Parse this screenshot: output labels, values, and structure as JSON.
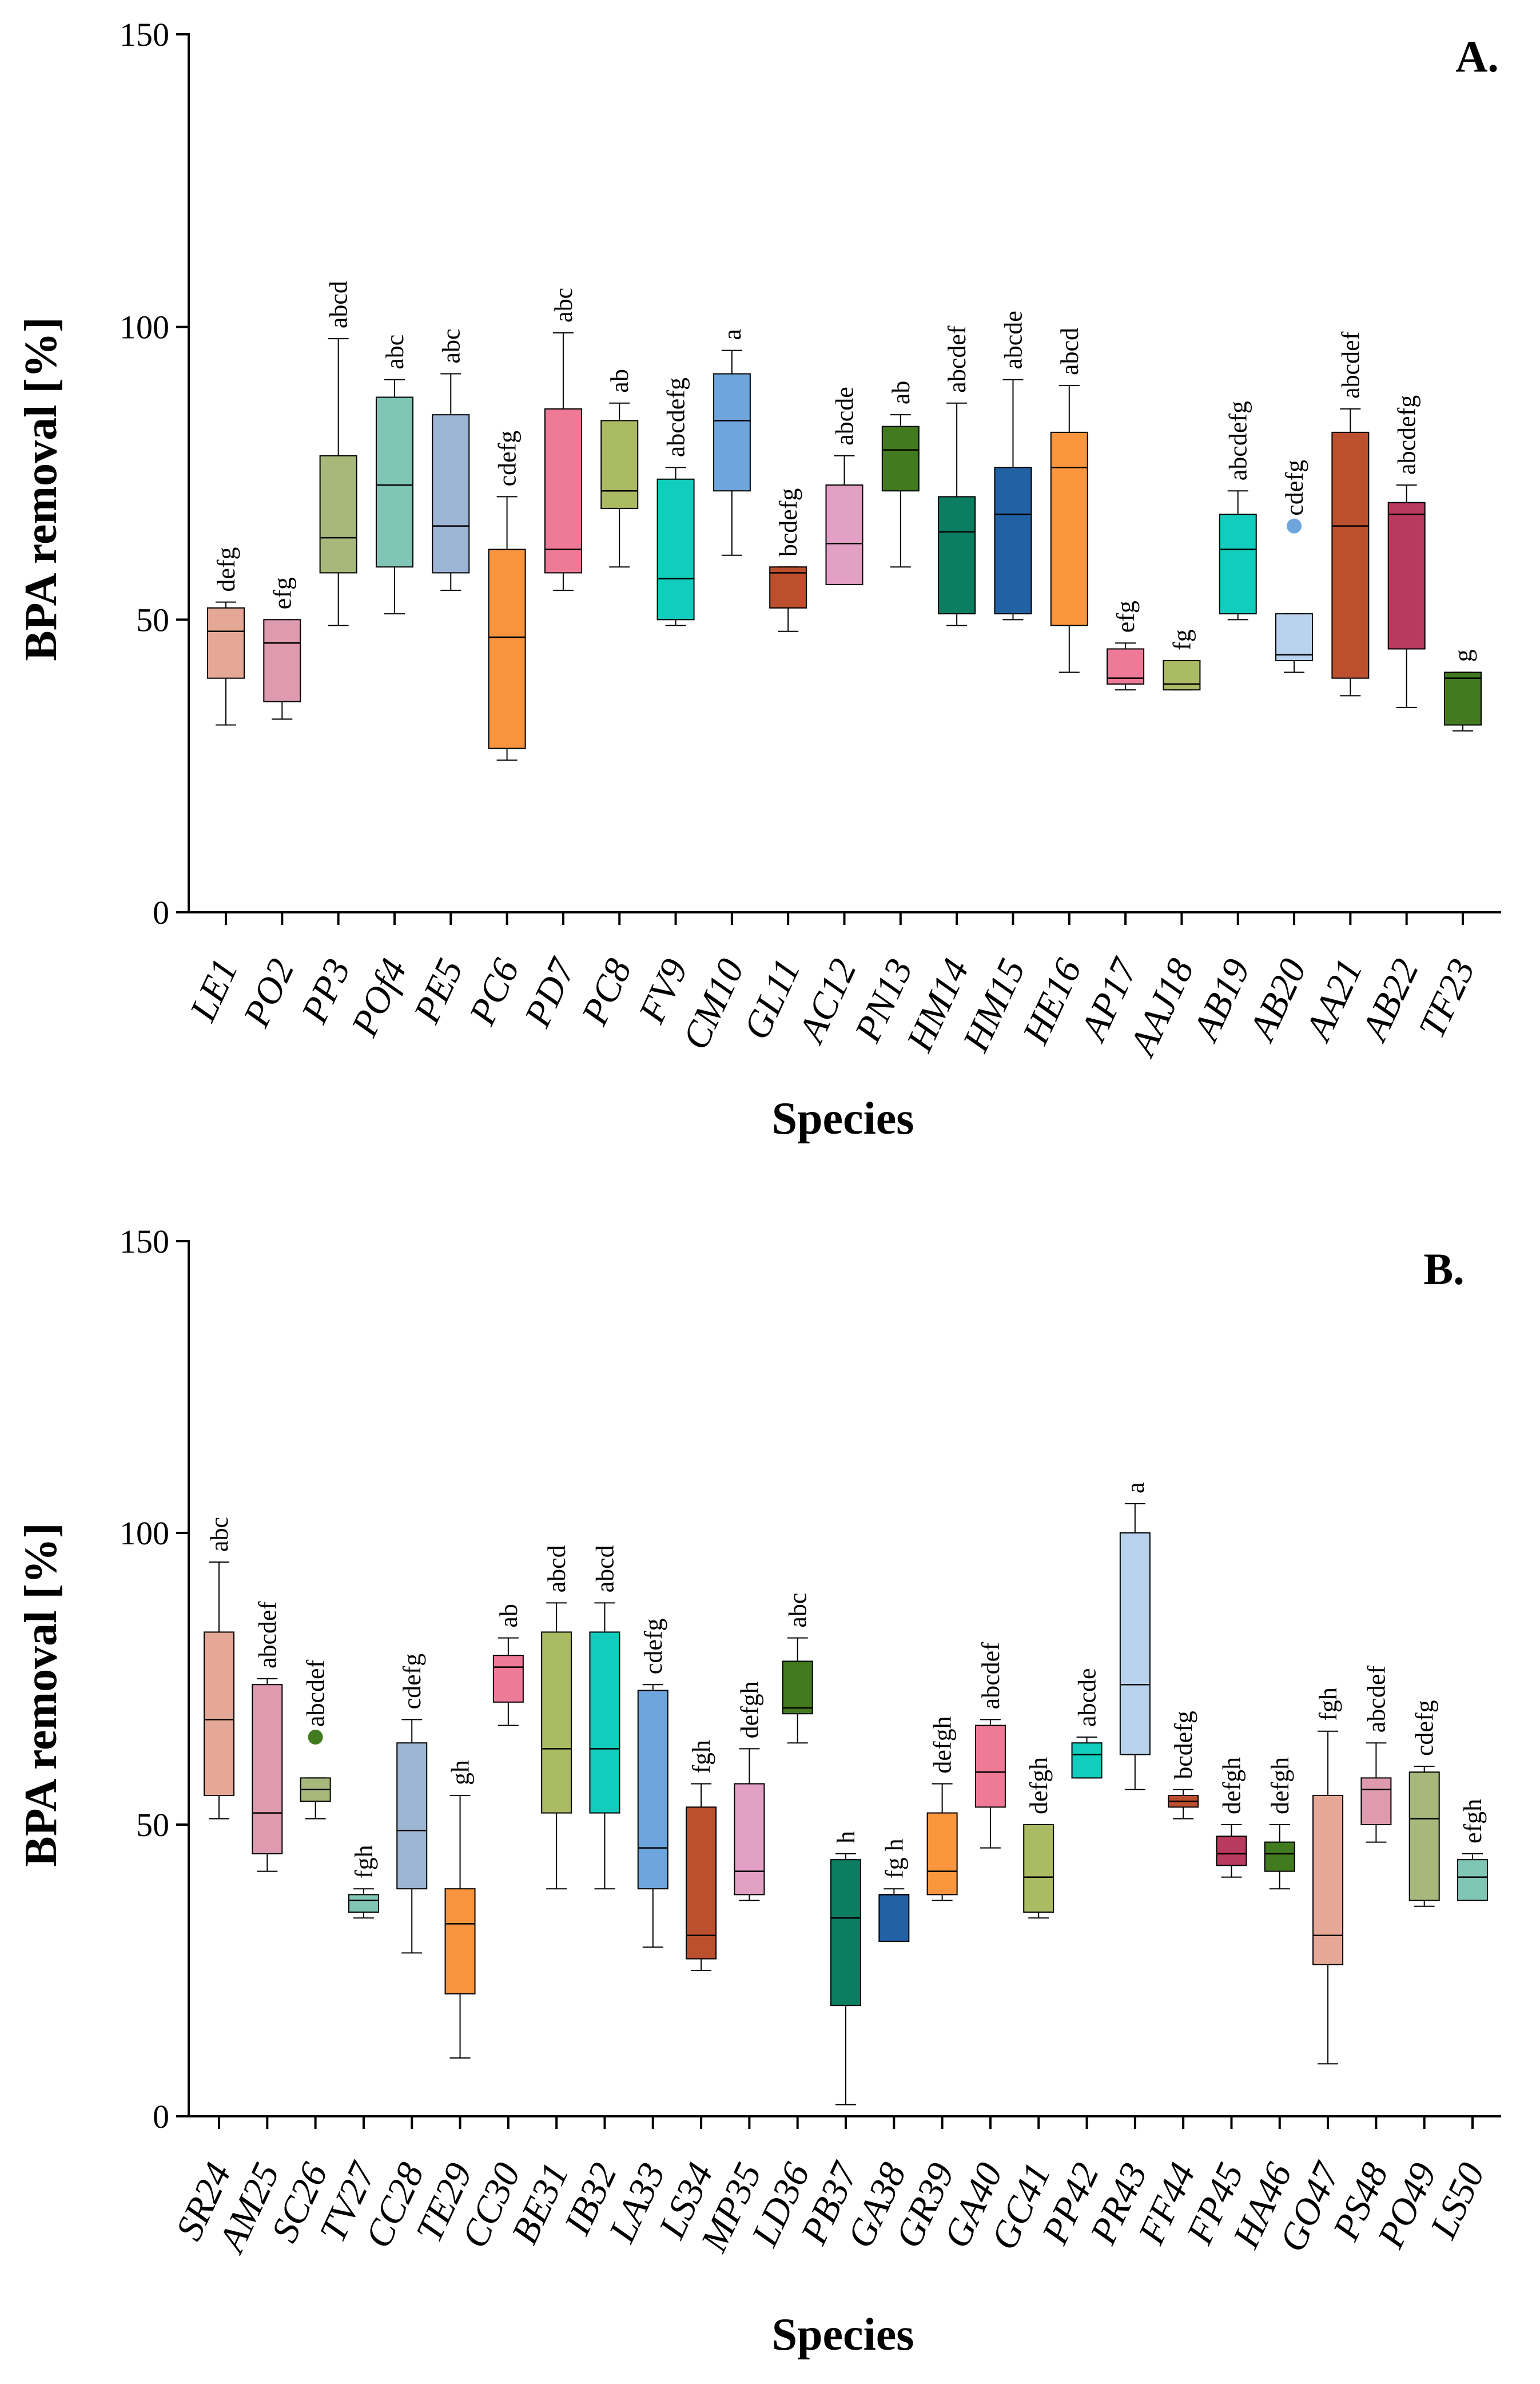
{
  "chart_data": [
    {
      "type": "box",
      "panel": "A.",
      "xlabel": "Species",
      "ylabel": "BPA removal [%]",
      "ylim": [
        0,
        150
      ],
      "yticks": [
        0,
        50,
        100,
        150
      ],
      "categories": [
        "LE1",
        "PO2",
        "PP3",
        "POf4",
        "PE5",
        "PC6",
        "PD7",
        "PC8",
        "FV9",
        "CM10",
        "GL11",
        "AC12",
        "PN13",
        "HM14",
        "HM15",
        "HE16",
        "AP17",
        "AAJ18",
        "AB19",
        "AB20",
        "AA21",
        "AB22",
        "TF23"
      ],
      "boxes": [
        {
          "min": 32,
          "q1": 40,
          "median": 48,
          "q3": 52,
          "max": 53,
          "color": "#E6A896",
          "letters": "defg"
        },
        {
          "min": 33,
          "q1": 36,
          "median": 46,
          "q3": 50,
          "max": 50,
          "color": "#DE9AAE",
          "letters": "efg"
        },
        {
          "min": 49,
          "q1": 58,
          "median": 64,
          "q3": 78,
          "max": 98,
          "color": "#A6B97B",
          "letters": "abcd"
        },
        {
          "min": 51,
          "q1": 59,
          "median": 73,
          "q3": 88,
          "max": 91,
          "color": "#80C6B6",
          "letters": "abc"
        },
        {
          "min": 55,
          "q1": 58,
          "median": 66,
          "q3": 85,
          "max": 92,
          "color": "#9DB5D5",
          "letters": "abc"
        },
        {
          "min": 26,
          "q1": 28,
          "median": 47,
          "q3": 62,
          "max": 71,
          "color": "#F7943D",
          "letters": "cdefg"
        },
        {
          "min": 55,
          "q1": 58,
          "median": 62,
          "q3": 86,
          "max": 99,
          "color": "#EF7A97",
          "letters": "abc"
        },
        {
          "min": 59,
          "q1": 69,
          "median": 72,
          "q3": 84,
          "max": 87,
          "color": "#ABBB63",
          "letters": "ab"
        },
        {
          "min": 49,
          "q1": 50,
          "median": 57,
          "q3": 74,
          "max": 76,
          "color": "#12CDBD",
          "letters": "abcdefg"
        },
        {
          "min": 61,
          "q1": 72,
          "median": 84,
          "q3": 92,
          "max": 96,
          "color": "#6EA5DC",
          "letters": "a"
        },
        {
          "min": 48,
          "q1": 52,
          "median": 58,
          "q3": 59,
          "max": 59,
          "color": "#BC4F2E",
          "letters": "bcdefg"
        },
        {
          "min": 56,
          "q1": 56,
          "median": 63,
          "q3": 73,
          "max": 78,
          "color": "#E2A0C4",
          "letters": "abcde"
        },
        {
          "min": 59,
          "q1": 72,
          "median": 79,
          "q3": 83,
          "max": 85,
          "color": "#427A1F",
          "letters": "ab"
        },
        {
          "min": 49,
          "q1": 51,
          "median": 65,
          "q3": 71,
          "max": 87,
          "color": "#0B7D60",
          "letters": "abcdef"
        },
        {
          "min": 50,
          "q1": 51,
          "median": 68,
          "q3": 76,
          "max": 91,
          "color": "#2262A4",
          "letters": "abcde"
        },
        {
          "min": 41,
          "q1": 49,
          "median": 76,
          "q3": 82,
          "max": 90,
          "color": "#F9963E",
          "letters": "abcd"
        },
        {
          "min": 38,
          "q1": 39,
          "median": 40,
          "q3": 45,
          "max": 46,
          "color": "#EF7A97",
          "letters": "efg"
        },
        {
          "min": 38,
          "q1": 38,
          "median": 39,
          "q3": 43,
          "max": 43,
          "color": "#ABBB63",
          "letters": "fg"
        },
        {
          "min": 50,
          "q1": 51,
          "median": 62,
          "q3": 68,
          "max": 72,
          "color": "#12CDBD",
          "letters": "abcdefg"
        },
        {
          "min": 41,
          "q1": 43,
          "median": 44,
          "q3": 51,
          "max": 51,
          "color": "#B9D3EE",
          "letters": "cdefg",
          "outliers": [
            66
          ]
        },
        {
          "min": 37,
          "q1": 40,
          "median": 66,
          "q3": 82,
          "max": 86,
          "color": "#BC4F2E",
          "letters": "abcdef"
        },
        {
          "min": 35,
          "q1": 45,
          "median": 68,
          "q3": 70,
          "max": 73,
          "color": "#B83A5E",
          "letters": "abcdefg"
        },
        {
          "min": 31,
          "q1": 32,
          "median": 40,
          "q3": 41,
          "max": 41,
          "color": "#427A1F",
          "letters": "g"
        }
      ]
    },
    {
      "type": "box",
      "panel": "B.",
      "xlabel": "Species",
      "ylabel": "BPA removal [%]",
      "ylim": [
        0,
        150
      ],
      "yticks": [
        0,
        50,
        100,
        150
      ],
      "categories": [
        "SR24",
        "AM25",
        "SC26",
        "TV27",
        "CC28",
        "TE29",
        "CC30",
        "BE31",
        "IB32",
        "LA33",
        "LS34",
        "MP35",
        "LD36",
        "PB37",
        "GA38",
        "GR39",
        "GA40",
        "GC41",
        "PP42",
        "PR43",
        "FF44",
        "FP45",
        "HA46",
        "GO47",
        "PS48",
        "PO49",
        "LS50"
      ],
      "boxes": [
        {
          "min": 51,
          "q1": 55,
          "median": 68,
          "q3": 83,
          "max": 95,
          "color": "#E6A896",
          "letters": "abc"
        },
        {
          "min": 42,
          "q1": 45,
          "median": 52,
          "q3": 74,
          "max": 75,
          "color": "#DE9AAE",
          "letters": "abcdef"
        },
        {
          "min": 51,
          "q1": 54,
          "median": 56,
          "q3": 58,
          "max": 58,
          "color": "#A6B97B",
          "letters": "abcdef",
          "outliers": [
            65
          ]
        },
        {
          "min": 34,
          "q1": 35,
          "median": 37,
          "q3": 38,
          "max": 39,
          "color": "#80C6B6",
          "letters": "fgh"
        },
        {
          "min": 28,
          "q1": 39,
          "median": 49,
          "q3": 64,
          "max": 68,
          "color": "#9DB5D5",
          "letters": "cdefg"
        },
        {
          "min": 10,
          "q1": 21,
          "median": 33,
          "q3": 39,
          "max": 55,
          "color": "#F7943D",
          "letters": "gh"
        },
        {
          "min": 67,
          "q1": 71,
          "median": 77,
          "q3": 79,
          "max": 82,
          "color": "#EF7A97",
          "letters": "ab"
        },
        {
          "min": 39,
          "q1": 52,
          "median": 63,
          "q3": 83,
          "max": 88,
          "color": "#ABBB63",
          "letters": "abcd"
        },
        {
          "min": 39,
          "q1": 52,
          "median": 63,
          "q3": 83,
          "max": 88,
          "color": "#12CDBD",
          "letters": "abcd"
        },
        {
          "min": 29,
          "q1": 39,
          "median": 46,
          "q3": 73,
          "max": 74,
          "color": "#6EA5DC",
          "letters": "cdefg"
        },
        {
          "min": 25,
          "q1": 27,
          "median": 31,
          "q3": 53,
          "max": 57,
          "color": "#BC4F2E",
          "letters": "fgh"
        },
        {
          "min": 37,
          "q1": 38,
          "median": 42,
          "q3": 57,
          "max": 63,
          "color": "#E2A0C4",
          "letters": "defgh"
        },
        {
          "min": 64,
          "q1": 69,
          "median": 70,
          "q3": 78,
          "max": 82,
          "color": "#427A1F",
          "letters": "abc"
        },
        {
          "min": 2,
          "q1": 19,
          "median": 34,
          "q3": 44,
          "max": 45,
          "color": "#0B7D60",
          "letters": "h"
        },
        {
          "min": 30,
          "q1": 30,
          "median": 38,
          "q3": 38,
          "max": 39,
          "color": "#2262A4",
          "letters": "fg h"
        },
        {
          "min": 37,
          "q1": 38,
          "median": 42,
          "q3": 52,
          "max": 57,
          "color": "#F9963E",
          "letters": "defgh"
        },
        {
          "min": 46,
          "q1": 53,
          "median": 59,
          "q3": 67,
          "max": 68,
          "color": "#EF7A97",
          "letters": "abcdef"
        },
        {
          "min": 34,
          "q1": 35,
          "median": 41,
          "q3": 50,
          "max": 50,
          "color": "#ABBB63",
          "letters": "defgh"
        },
        {
          "min": 58,
          "q1": 58,
          "median": 62,
          "q3": 64,
          "max": 65,
          "color": "#12CDBD",
          "letters": "abcde"
        },
        {
          "min": 56,
          "q1": 62,
          "median": 74,
          "q3": 100,
          "max": 105,
          "color": "#B9D3EE",
          "letters": "a"
        },
        {
          "min": 51,
          "q1": 53,
          "median": 54,
          "q3": 55,
          "max": 56,
          "color": "#BC4F2E",
          "letters": "bcdefg"
        },
        {
          "min": 41,
          "q1": 43,
          "median": 45,
          "q3": 48,
          "max": 50,
          "color": "#B83A5E",
          "letters": "defgh"
        },
        {
          "min": 39,
          "q1": 42,
          "median": 45,
          "q3": 47,
          "max": 50,
          "color": "#427A1F",
          "letters": "defgh"
        },
        {
          "min": 9,
          "q1": 26,
          "median": 31,
          "q3": 55,
          "max": 66,
          "color": "#E6A896",
          "letters": "fgh"
        },
        {
          "min": 47,
          "q1": 50,
          "median": 56,
          "q3": 58,
          "max": 64,
          "color": "#DE9AAE",
          "letters": "abcdef"
        },
        {
          "min": 36,
          "q1": 37,
          "median": 51,
          "q3": 59,
          "max": 60,
          "color": "#A6B97B",
          "letters": "cdefg"
        },
        {
          "min": 37,
          "q1": 37,
          "median": 41,
          "q3": 44,
          "max": 45,
          "color": "#80C6B6",
          "letters": "efgh"
        }
      ]
    }
  ]
}
